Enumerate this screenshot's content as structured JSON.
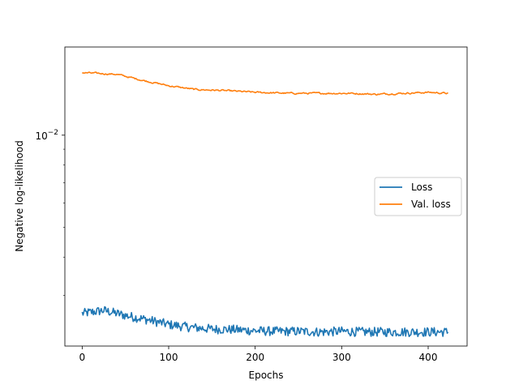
{
  "chart_data": {
    "type": "line",
    "title": "",
    "xlabel": "Epochs",
    "ylabel": "Negative log-likelihood",
    "xlim": [
      -20,
      445
    ],
    "ylim": [
      0.00205,
      0.0194
    ],
    "y_scale": "log",
    "x_ticks": [
      0,
      100,
      200,
      300,
      400
    ],
    "y_ticks": [
      {
        "value": 0.01,
        "base": "10",
        "exponent": "−2"
      }
    ],
    "grid": false,
    "legend_position": "center-right",
    "series": [
      {
        "name": "Loss",
        "color": "#1f77b4",
        "keypoints": [
          [
            0,
            0.00262
          ],
          [
            25,
            0.00268
          ],
          [
            50,
            0.00258
          ],
          [
            75,
            0.0025
          ],
          [
            100,
            0.00241
          ],
          [
            125,
            0.00236
          ],
          [
            150,
            0.00233
          ],
          [
            175,
            0.00232
          ],
          [
            200,
            0.0023
          ],
          [
            225,
            0.00229
          ],
          [
            250,
            0.00229
          ],
          [
            275,
            0.00228
          ],
          [
            300,
            0.00229
          ],
          [
            325,
            0.00228
          ],
          [
            350,
            0.00228
          ],
          [
            375,
            0.00228
          ],
          [
            400,
            0.00228
          ],
          [
            423,
            0.00228
          ]
        ],
        "noise": 0.035
      },
      {
        "name": "Val. loss",
        "color": "#ff7f0e",
        "keypoints": [
          [
            0,
            0.016
          ],
          [
            40,
            0.0158
          ],
          [
            70,
            0.0151
          ],
          [
            100,
            0.0145
          ],
          [
            130,
            0.0141
          ],
          [
            160,
            0.014
          ],
          [
            200,
            0.0138
          ],
          [
            240,
            0.0137
          ],
          [
            280,
            0.0137
          ],
          [
            310,
            0.0137
          ],
          [
            340,
            0.0136
          ],
          [
            370,
            0.0137
          ],
          [
            400,
            0.0138
          ],
          [
            423,
            0.0137
          ]
        ],
        "noise": 0.012
      }
    ]
  }
}
